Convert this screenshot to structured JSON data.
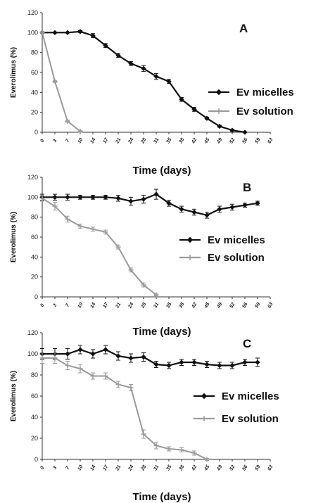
{
  "colors": {
    "micelles": "#111111",
    "solution": "#9a9a9a",
    "axis": "#333333"
  },
  "chart_data": [
    {
      "type": "line",
      "panel": "A",
      "xlabel": "Time (days)",
      "ylabel": "Everolimus (%)",
      "ylim": [
        0,
        120
      ],
      "yticks": [
        0,
        20,
        40,
        60,
        80,
        100,
        120
      ],
      "x": [
        0,
        3,
        7,
        10,
        14,
        17,
        21,
        24,
        28,
        31,
        35,
        38,
        42,
        45,
        49,
        52,
        56,
        59,
        63
      ],
      "x_tick_labels": [
        "0",
        "3",
        "7",
        "10",
        "14",
        "17",
        "21",
        "24",
        "28",
        "31",
        "35",
        "38",
        "42",
        "45",
        "49",
        "52",
        "56",
        "59",
        "63"
      ],
      "grid": false,
      "legend_position": "right",
      "series": [
        {
          "name": "Ev micelles",
          "x": [
            0,
            3,
            7,
            10,
            14,
            17,
            21,
            24,
            28,
            31,
            35,
            38,
            42,
            45,
            49,
            52,
            56,
            59,
            63
          ],
          "values": [
            100,
            100,
            100,
            101,
            97,
            87,
            77,
            69,
            64,
            56,
            51,
            33,
            23,
            14,
            6,
            2,
            0,
            null,
            null
          ],
          "errors": [
            0,
            0,
            0,
            1,
            2,
            2,
            2,
            2,
            3,
            3,
            2,
            2,
            2,
            1,
            1,
            1,
            0,
            null,
            null
          ]
        },
        {
          "name": "Ev solution",
          "x": [
            0,
            3,
            7,
            10
          ],
          "values": [
            100,
            51,
            11,
            1
          ],
          "errors": [
            1,
            1,
            1,
            1
          ]
        }
      ]
    },
    {
      "type": "line",
      "panel": "B",
      "xlabel": "Time (days)",
      "ylabel": "Everolimus (%)",
      "ylim": [
        0,
        120
      ],
      "yticks": [
        0,
        20,
        40,
        60,
        80,
        100,
        120
      ],
      "x_tick_labels": [
        "0",
        "3",
        "7",
        "10",
        "14",
        "17",
        "21",
        "24",
        "28",
        "31",
        "35",
        "38",
        "42",
        "45",
        "49",
        "52",
        "56",
        "59",
        "63"
      ],
      "grid": false,
      "legend_position": "right",
      "series": [
        {
          "name": "Ev micelles",
          "x": [
            0,
            3,
            7,
            10,
            14,
            17,
            21,
            24,
            28,
            31,
            35,
            38,
            42,
            45,
            49,
            52,
            56,
            59,
            63
          ],
          "values": [
            100,
            100,
            100,
            100,
            100,
            100,
            99,
            96,
            98,
            103,
            94,
            88,
            85,
            82,
            88,
            90,
            92,
            94,
            null
          ],
          "errors": [
            3,
            3,
            3,
            2,
            2,
            2,
            3,
            4,
            4,
            5,
            3,
            3,
            3,
            3,
            3,
            3,
            2,
            2,
            null
          ]
        },
        {
          "name": "Ev solution",
          "x": [
            0,
            3,
            7,
            10,
            14,
            17,
            21,
            24,
            28,
            31
          ],
          "values": [
            99,
            91,
            78,
            71,
            68,
            65,
            50,
            27,
            12,
            2
          ],
          "errors": [
            3,
            4,
            3,
            2,
            2,
            2,
            2,
            2,
            2,
            1
          ]
        }
      ]
    },
    {
      "type": "line",
      "panel": "C",
      "xlabel": "Time (days)",
      "ylabel": "Everolimus (%)",
      "ylim": [
        0,
        120
      ],
      "yticks": [
        0,
        20,
        40,
        60,
        80,
        100,
        120
      ],
      "x_tick_labels": [
        "0",
        "3",
        "7",
        "10",
        "14",
        "17",
        "21",
        "24",
        "28",
        "31",
        "35",
        "38",
        "42",
        "45",
        "49",
        "52",
        "56",
        "59",
        "63"
      ],
      "grid": false,
      "legend_position": "right",
      "series": [
        {
          "name": "Ev micelles",
          "x": [
            0,
            3,
            7,
            10,
            14,
            17,
            21,
            24,
            28,
            31,
            35,
            38,
            42,
            45,
            49,
            52,
            56,
            59,
            63
          ],
          "values": [
            100,
            100,
            100,
            104,
            100,
            104,
            98,
            96,
            97,
            90,
            89,
            92,
            92,
            90,
            89,
            89,
            92,
            92,
            null
          ],
          "errors": [
            5,
            5,
            5,
            4,
            4,
            4,
            4,
            4,
            4,
            3,
            3,
            3,
            3,
            3,
            3,
            3,
            3,
            4,
            null
          ]
        },
        {
          "name": "Ev solution",
          "x": [
            0,
            3,
            7,
            10,
            14,
            17,
            21,
            24,
            28,
            31,
            35,
            38,
            42,
            45
          ],
          "values": [
            96,
            96,
            89,
            86,
            79,
            79,
            71,
            68,
            24,
            13,
            10,
            9,
            6,
            0
          ],
          "errors": [
            5,
            5,
            4,
            4,
            3,
            3,
            3,
            3,
            4,
            3,
            2,
            2,
            2,
            1
          ]
        }
      ]
    }
  ]
}
